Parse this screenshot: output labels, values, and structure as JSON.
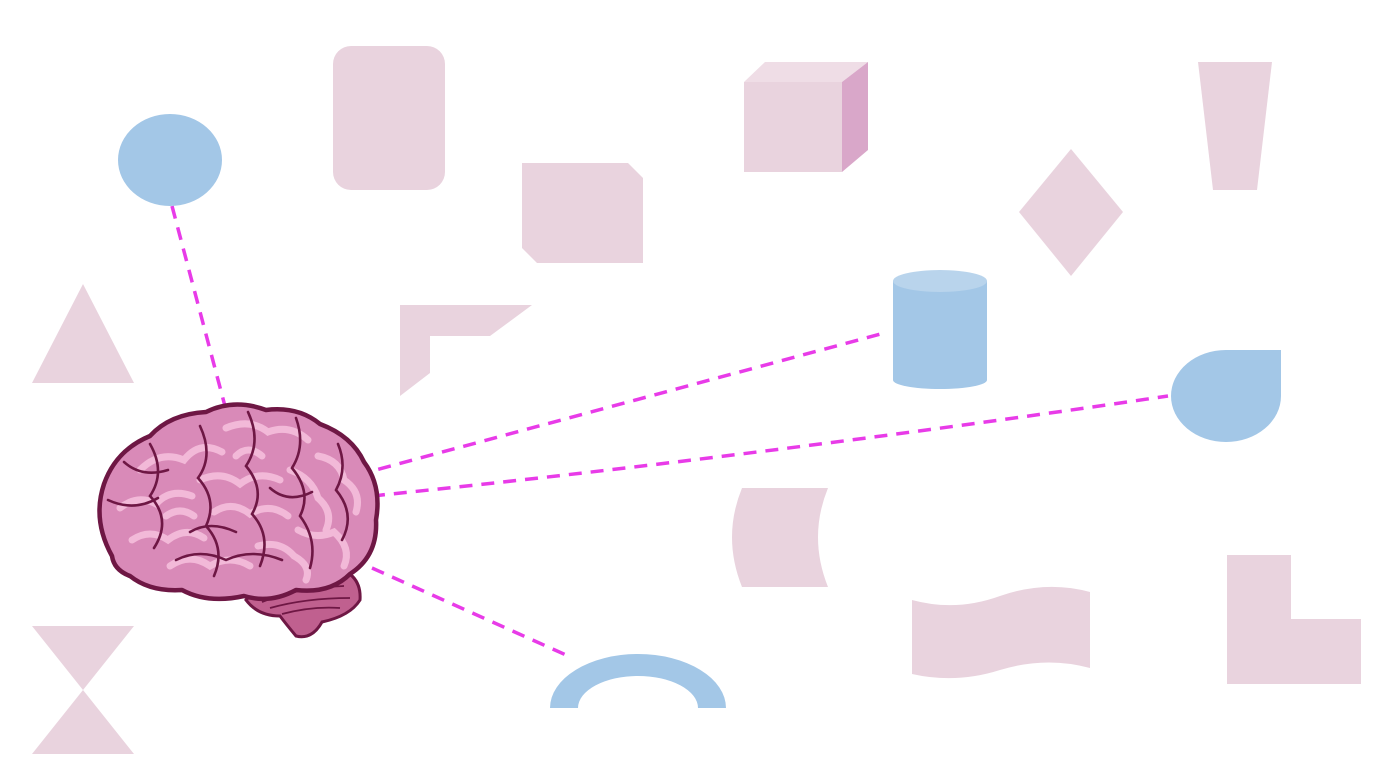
{
  "colors": {
    "background": "#ffffff",
    "pink_shape": "#e9d3de",
    "pink_shape_dark": "#d9a7c9",
    "pink_shape_top": "#efdde6",
    "blue_shape": "#a3c7e7",
    "blue_shape_top": "#b9d4ec",
    "connector": "#e83be8",
    "brain_fill": "#d98ab8",
    "brain_light": "#f2b9d8",
    "brain_outline": "#6e1744",
    "cerebellum": "#c0608f"
  },
  "diagram": {
    "center_node": "brain-icon",
    "connector_style": "dashed",
    "highlighted_shapes": [
      "circle",
      "cylinder",
      "teardrop",
      "arch"
    ],
    "background_shapes": [
      "rounded-rectangle",
      "cube",
      "trapezoid",
      "snipped-corner-square",
      "diamond",
      "triangle",
      "corner-frame",
      "cut-rectangle",
      "wave-banner",
      "l-shape",
      "hourglass"
    ]
  }
}
